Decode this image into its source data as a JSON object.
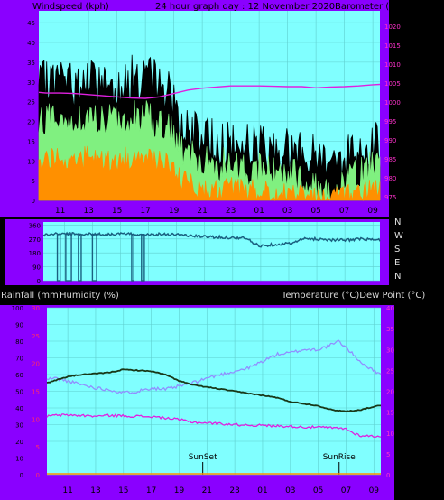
{
  "header": {
    "left": "Windspeed (kph)",
    "center": "24 hour graph day : 12 November 2020",
    "right": "Barometer (hpa)"
  },
  "lower_header": {
    "left1": "Rainfall (mm)",
    "left2": "Humidity (%)",
    "right": "Temperature (°C)Dew Point (°C)"
  },
  "sun": {
    "set": "SunSet",
    "rise": "SunRise"
  },
  "compass": [
    "N",
    "W",
    "S",
    "E",
    "N"
  ],
  "colors": {
    "frame": "#8a00ff",
    "plot_bg": "#80ffff",
    "wind_gust": "#000000",
    "wind_avg": "#80f080",
    "wind_low": "#ff9000",
    "barometer": "#e020e0",
    "direction": "#1a6080",
    "temperature": "#183818",
    "humidity": "#9090ff",
    "dewpoint": "#e020e0",
    "right_axis_text": "#ff33cc",
    "rain_axis_text": "#ff2a6a"
  },
  "chart_data": [
    {
      "type": "area",
      "title": "24 hour graph day : 12 November 2020",
      "x_ticks": [
        "11",
        "13",
        "15",
        "17",
        "19",
        "21",
        "23",
        "01",
        "03",
        "05",
        "07",
        "09"
      ],
      "y_left_label": "Windspeed (kph)",
      "y_left_ticks": [
        0,
        5,
        10,
        15,
        20,
        25,
        30,
        35,
        40,
        45
      ],
      "y_left_range": [
        0,
        48
      ],
      "y_right_label": "Barometer (hpa)",
      "y_right_ticks": [
        975,
        980,
        985,
        990,
        995,
        1000,
        1005,
        1010,
        1015,
        1020
      ],
      "y_right_range": [
        974,
        1024
      ],
      "x_range_hours": [
        9.5,
        33.5
      ],
      "series": [
        {
          "name": "Wind gust",
          "x": [
            9.5,
            10,
            11,
            12,
            13,
            14,
            15,
            16,
            17,
            18,
            19,
            19.5,
            20,
            21,
            22,
            23,
            24,
            25,
            26,
            27,
            28,
            29,
            29.5,
            30,
            31,
            32,
            33,
            33.5
          ],
          "values": [
            28,
            30,
            31,
            29,
            30,
            30,
            29,
            31,
            31,
            30,
            26,
            19,
            17,
            16,
            15,
            14,
            14,
            14,
            13,
            13,
            12,
            11,
            11,
            11,
            11,
            13,
            15,
            14
          ]
        },
        {
          "name": "Wind average",
          "x": [
            9.5,
            10,
            11,
            12,
            13,
            14,
            15,
            16,
            17,
            18,
            19,
            19.5,
            20,
            21,
            22,
            23,
            24,
            25,
            26,
            27,
            28,
            29,
            29.5,
            30,
            31,
            32,
            33,
            33.5
          ],
          "values": [
            19,
            21,
            21,
            20,
            21,
            20,
            20,
            21,
            21,
            20,
            17,
            13,
            11,
            10,
            9,
            9,
            8,
            8,
            7,
            7,
            6,
            4,
            3,
            3,
            4,
            7,
            9,
            8
          ]
        },
        {
          "name": "Wind low",
          "x": [
            9.5,
            10,
            11,
            12,
            13,
            14,
            15,
            16,
            17,
            18,
            19,
            19.5,
            20,
            21,
            22,
            23,
            24,
            25,
            26,
            27,
            28,
            29,
            29.5,
            30,
            31,
            32,
            33,
            33.5
          ],
          "values": [
            10,
            11,
            11,
            10,
            11,
            10,
            10,
            11,
            11,
            10,
            8,
            5,
            4,
            3,
            3,
            3,
            3,
            2,
            2,
            2,
            2,
            1,
            1,
            1,
            1,
            2,
            3,
            3
          ]
        },
        {
          "name": "Barometer",
          "x": [
            9.5,
            10,
            11,
            12,
            13,
            14,
            15,
            16,
            17,
            18,
            19,
            20,
            21,
            22,
            23,
            24,
            25,
            26,
            27,
            28,
            29,
            30,
            31,
            32,
            33,
            33.5
          ],
          "values": [
            1002.5,
            1002.3,
            1002.3,
            1002.2,
            1001.9,
            1001.6,
            1001.3,
            1001,
            1000.9,
            1001.3,
            1002.2,
            1003.1,
            1003.6,
            1003.9,
            1004.2,
            1004.2,
            1004.2,
            1004.1,
            1004,
            1004,
            1003.7,
            1003.9,
            1004,
            1004.2,
            1004.5,
            1004.6
          ]
        }
      ]
    },
    {
      "type": "line",
      "title": "",
      "y_left_ticks": [
        0,
        90,
        180,
        270,
        360
      ],
      "y_left_range": [
        0,
        380
      ],
      "y_right_ticks": [
        "N",
        "W",
        "S",
        "E",
        "N"
      ],
      "x_range_hours": [
        9.5,
        33.5
      ],
      "series": [
        {
          "name": "Wind direction",
          "x": [
            9.5,
            10,
            11,
            12,
            13,
            14,
            15,
            16,
            17,
            18,
            19,
            20,
            21,
            22,
            23,
            24,
            24.5,
            25,
            26,
            27,
            27.5,
            28,
            29,
            30,
            31,
            32,
            33,
            33.5
          ],
          "values": [
            295,
            300,
            305,
            300,
            302,
            300,
            303,
            300,
            298,
            302,
            300,
            290,
            285,
            282,
            278,
            275,
            240,
            225,
            235,
            240,
            250,
            270,
            270,
            265,
            262,
            270,
            265,
            262
          ]
        }
      ],
      "dropouts": [
        [
          10.5,
          10.7
        ],
        [
          11.1,
          11.5
        ],
        [
          12.0,
          12.2
        ],
        [
          13.0,
          13.3
        ],
        [
          15.8,
          15.95
        ],
        [
          16.5,
          16.7
        ]
      ]
    },
    {
      "type": "line",
      "title": "",
      "x_ticks": [
        "11",
        "13",
        "15",
        "17",
        "19",
        "21",
        "23",
        "01",
        "03",
        "05",
        "07",
        "09"
      ],
      "y_left_label": "Rainfall (mm)",
      "y_left_ticks": [
        0,
        10,
        20,
        30,
        40,
        50,
        60,
        70,
        80,
        90,
        100
      ],
      "y_left_range": [
        0,
        100
      ],
      "y_left_inner_label": "Humidity (%)",
      "y_rain_ticks": [
        0,
        5,
        10,
        15,
        20,
        25,
        30
      ],
      "y_rain_range": [
        0,
        30
      ],
      "y_right_label": "Temperature (°C)Dew Point (°C)",
      "y_right_ticks": [
        0,
        5,
        10,
        15,
        20,
        25,
        30,
        35,
        40
      ],
      "y_right_range": [
        0,
        40
      ],
      "x_range_hours": [
        9.5,
        33.5
      ],
      "series": [
        {
          "name": "Temperature",
          "x": [
            9.5,
            10,
            11,
            12,
            13,
            14,
            15,
            16,
            17,
            18,
            19,
            20,
            21,
            22,
            23,
            24,
            25,
            26,
            27,
            28,
            29,
            30,
            31,
            32,
            33,
            33.5
          ],
          "values": [
            22.0,
            22.5,
            23.5,
            24.0,
            24.2,
            24.5,
            25.2,
            25.0,
            24.8,
            24.0,
            22.5,
            21.5,
            21.0,
            20.5,
            20.0,
            19.5,
            19.0,
            18.5,
            17.5,
            17.0,
            16.5,
            15.5,
            15.2,
            15.5,
            16.3,
            16.6
          ]
        },
        {
          "name": "Humidity",
          "x": [
            9.5,
            10,
            11,
            12,
            13,
            14,
            15,
            16,
            17,
            18,
            19,
            20,
            21,
            22,
            23,
            24,
            25,
            26,
            27,
            28,
            29,
            30,
            30.5,
            31,
            32,
            33,
            33.5
          ],
          "values": [
            57,
            58,
            56,
            54,
            52,
            51,
            49,
            50,
            52,
            51,
            53,
            55,
            58,
            60,
            62,
            64,
            68,
            72,
            73,
            75,
            75,
            78,
            80,
            76,
            68,
            62,
            61
          ]
        },
        {
          "name": "Dew point",
          "x": [
            9.5,
            10,
            11,
            12,
            13,
            14,
            15,
            16,
            17,
            18,
            19,
            20,
            21,
            22,
            23,
            24,
            25,
            26,
            27,
            28,
            29,
            30,
            31,
            31.5,
            32,
            33,
            33.5
          ],
          "values": [
            14.0,
            14.2,
            14.3,
            14.2,
            14.0,
            14.2,
            14.1,
            14.0,
            13.9,
            13.6,
            13.2,
            12.6,
            12.4,
            12.2,
            12.0,
            11.9,
            11.8,
            11.7,
            11.6,
            11.4,
            11.4,
            11.2,
            11.0,
            10.0,
            9.4,
            9.2,
            9.2
          ]
        }
      ],
      "annotations": [
        {
          "label": "SunSet",
          "x_hour": 20.7
        },
        {
          "label": "SunRise",
          "x_hour": 30.5
        }
      ]
    }
  ]
}
